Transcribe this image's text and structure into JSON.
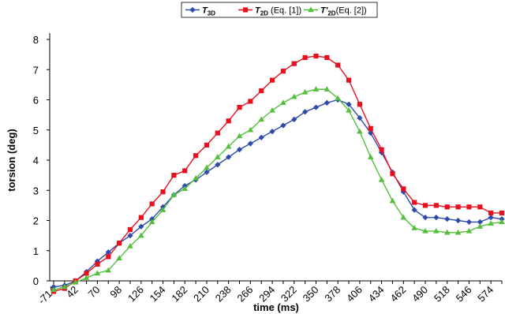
{
  "chart_data": {
    "type": "line",
    "xlabel": "time (ms)",
    "ylabel": "torsion (deg)",
    "ylim": [
      0,
      8
    ],
    "yticks": [
      0,
      1,
      2,
      3,
      4,
      5,
      6,
      7,
      8
    ],
    "x": [
      "-714",
      "28",
      "42",
      "56",
      "70",
      "84",
      "98",
      "112",
      "126",
      "140",
      "154",
      "168",
      "182",
      "196",
      "210",
      "224",
      "238",
      "252",
      "266",
      "280",
      "294",
      "308",
      "322",
      "336",
      "350",
      "364",
      "378",
      "392",
      "406",
      "420",
      "434",
      "448",
      "462",
      "476",
      "490",
      "504",
      "518",
      "532",
      "546",
      "560",
      "574",
      "588"
    ],
    "xtick_labels": [
      "-714",
      "42",
      "70",
      "98",
      "126",
      "154",
      "182",
      "210",
      "238",
      "266",
      "294",
      "322",
      "350",
      "378",
      "406",
      "434",
      "462",
      "490",
      "518",
      "546",
      "574"
    ],
    "grid": false,
    "legend_position": "top-center",
    "series": [
      {
        "name_main": "T",
        "name_sub": "3D",
        "name_suffix": "",
        "color": "#2e4bab",
        "marker": "diamond",
        "values": [
          -0.2,
          -0.15,
          0.0,
          0.3,
          0.65,
          0.95,
          1.25,
          1.5,
          1.8,
          2.05,
          2.45,
          2.85,
          3.15,
          3.35,
          3.6,
          3.85,
          4.1,
          4.35,
          4.55,
          4.75,
          4.95,
          5.15,
          5.35,
          5.6,
          5.75,
          5.9,
          6.0,
          5.85,
          5.4,
          4.9,
          4.25,
          3.6,
          2.95,
          2.35,
          2.1,
          2.1,
          2.05,
          2.0,
          1.95,
          1.95,
          2.1,
          2.05
        ]
      },
      {
        "name_main": "T",
        "name_sub": "2D",
        "name_suffix": " (Eq. [1])",
        "color": "#e8101c",
        "marker": "square",
        "values": [
          -0.35,
          -0.25,
          0.0,
          0.25,
          0.55,
          0.8,
          1.25,
          1.7,
          2.1,
          2.55,
          2.95,
          3.5,
          3.65,
          4.15,
          4.5,
          4.9,
          5.3,
          5.75,
          5.95,
          6.3,
          6.65,
          6.95,
          7.2,
          7.4,
          7.45,
          7.4,
          7.15,
          6.65,
          5.85,
          5.05,
          4.35,
          3.55,
          3.05,
          2.6,
          2.5,
          2.5,
          2.45,
          2.45,
          2.45,
          2.45,
          2.25,
          2.25
        ]
      },
      {
        "name_main": "T'",
        "name_sub": "2D",
        "name_suffix": "(Eq. [2])",
        "color": "#54bf3c",
        "marker": "triangle",
        "values": [
          -0.3,
          -0.2,
          -0.05,
          0.1,
          0.25,
          0.35,
          0.75,
          1.15,
          1.5,
          1.95,
          2.35,
          2.85,
          3.05,
          3.4,
          3.75,
          4.1,
          4.45,
          4.8,
          5.0,
          5.35,
          5.65,
          5.9,
          6.1,
          6.25,
          6.35,
          6.35,
          6.05,
          5.65,
          4.95,
          4.1,
          3.35,
          2.65,
          2.1,
          1.75,
          1.65,
          1.65,
          1.6,
          1.6,
          1.65,
          1.8,
          1.9,
          1.95
        ]
      }
    ]
  }
}
